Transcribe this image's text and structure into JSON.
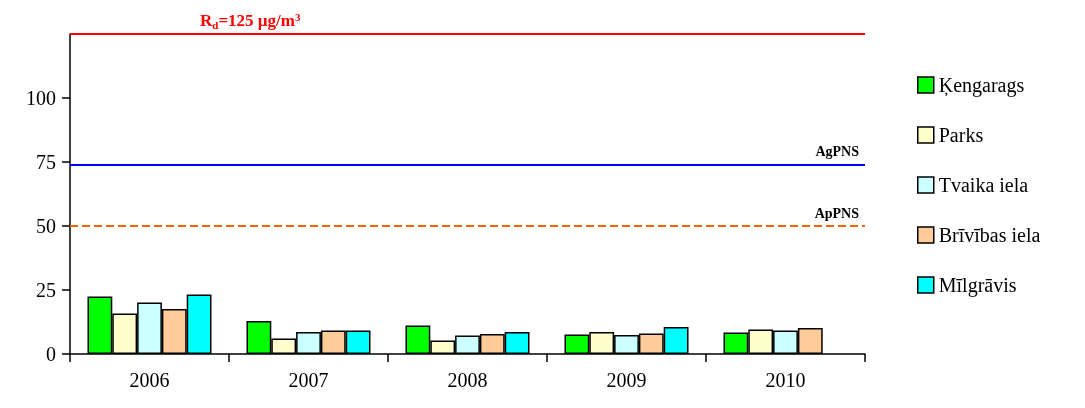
{
  "chart_data": {
    "type": "bar",
    "categories": [
      "2006",
      "2007",
      "2008",
      "2009",
      "2010"
    ],
    "series": [
      {
        "name": "Ķengarags",
        "color": "#00ff00",
        "values": [
          22.5,
          12.9,
          11.1,
          7.6,
          8.4
        ]
      },
      {
        "name": "Parks",
        "color": "#ffffcc",
        "values": [
          15.8,
          6.1,
          5.3,
          8.6,
          9.6
        ]
      },
      {
        "name": "Tvaika iela",
        "color": "#ccffff",
        "values": [
          20.1,
          8.6,
          7.2,
          7.4,
          9.2
        ]
      },
      {
        "name": "Brīvības iela",
        "color": "#ffcc99",
        "values": [
          17.6,
          9.2,
          7.8,
          8.0,
          10.2
        ]
      },
      {
        "name": "Mīlgrāvis",
        "color": "#00ffff",
        "values": [
          23.2,
          9.2,
          8.6,
          10.5,
          null
        ]
      }
    ],
    "ylim": [
      0,
      125
    ],
    "yticks": [
      0,
      25,
      50,
      75,
      100
    ],
    "ref_lines": [
      {
        "axis": "y",
        "value": 125,
        "label": "R$_{d}$=125 µg/m$^{3}$",
        "color": "#ff0000",
        "line_style": "solid"
      },
      {
        "axis": "y",
        "value": 74,
        "label": "AgPNS",
        "color": "#0000ff",
        "line_style": "solid"
      },
      {
        "axis": "y",
        "value": 50,
        "label": "ApPNS",
        "color": "#ff6600",
        "line_style": "dashed"
      }
    ],
    "grid": false,
    "legend": "right"
  }
}
